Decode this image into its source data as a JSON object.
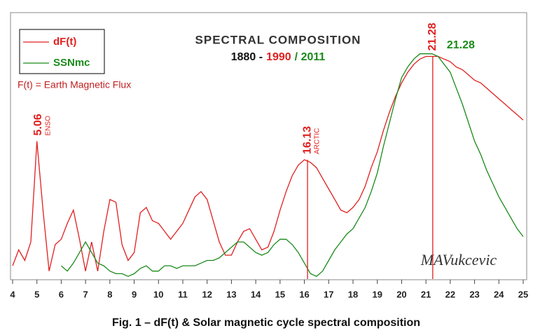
{
  "chart_data": {
    "type": "line",
    "title": "SPECTRAL COMPOSITION",
    "subtitle_parts": [
      {
        "text": "1880 -",
        "color": "#111111"
      },
      {
        "text": "1990",
        "color": "#e02020"
      },
      {
        "text": "/ 2011",
        "color": "#1a8a1a"
      }
    ],
    "note": "F(t) = Earth Magnetic Flux",
    "signature": "MAVukcevic",
    "caption": "Fig. 1 – dF(t)  & Solar magnetic cycle spectral composition",
    "x": [
      4,
      4.25,
      4.5,
      4.75,
      5,
      5.25,
      5.5,
      5.75,
      6,
      6.25,
      6.5,
      6.75,
      7,
      7.25,
      7.5,
      7.75,
      8,
      8.25,
      8.5,
      8.75,
      9,
      9.25,
      9.5,
      9.75,
      10,
      10.25,
      10.5,
      10.75,
      11,
      11.25,
      11.5,
      11.75,
      12,
      12.25,
      12.5,
      12.75,
      13,
      13.25,
      13.5,
      13.75,
      14,
      14.25,
      14.5,
      14.75,
      15,
      15.25,
      15.5,
      15.75,
      16,
      16.25,
      16.5,
      16.75,
      17,
      17.25,
      17.5,
      17.75,
      18,
      18.25,
      18.5,
      18.75,
      19,
      19.25,
      19.5,
      19.75,
      20,
      20.25,
      20.5,
      20.75,
      21,
      21.25,
      21.5,
      21.75,
      22,
      22.25,
      22.5,
      22.75,
      23,
      23.25,
      23.5,
      23.75,
      24,
      24.25,
      24.5,
      24.75,
      25
    ],
    "series": [
      {
        "name": "dF(t)",
        "color": "#e02020",
        "values": [
          5,
          11,
          7,
          14,
          52,
          26,
          3,
          13,
          15,
          21,
          26,
          15,
          3,
          14,
          3,
          18,
          30,
          29,
          13,
          7,
          10,
          25,
          27,
          22,
          21,
          18,
          15,
          18,
          21,
          26,
          31,
          33,
          30,
          22,
          14,
          9,
          9,
          14,
          18,
          19,
          15,
          11,
          12,
          18,
          26,
          33,
          39,
          43,
          45,
          44,
          42,
          38,
          34,
          30,
          26,
          25,
          27,
          30,
          35,
          42,
          48,
          56,
          63,
          69,
          74,
          78,
          81,
          83,
          84,
          84,
          84,
          83,
          82,
          80,
          79,
          77,
          75,
          74,
          72,
          70,
          68,
          66,
          64,
          62,
          60
        ]
      },
      {
        "name": "SSNmc",
        "color": "#1a8a1a",
        "values": [
          null,
          null,
          null,
          null,
          null,
          null,
          null,
          null,
          5,
          3,
          6,
          10,
          14,
          10,
          6,
          5,
          3,
          2,
          2,
          1,
          2,
          4,
          5,
          3,
          3,
          5,
          5,
          4,
          5,
          5,
          5,
          6,
          7,
          7,
          8,
          10,
          12,
          14,
          14,
          12,
          10,
          9,
          10,
          13,
          15,
          15,
          13,
          10,
          6,
          2,
          1,
          3,
          7,
          11,
          14,
          17,
          19,
          23,
          27,
          33,
          40,
          50,
          59,
          68,
          76,
          80,
          83,
          85,
          85,
          85,
          84,
          81,
          78,
          72,
          66,
          59,
          52,
          47,
          41,
          36,
          31,
          27,
          23,
          19,
          16
        ]
      }
    ],
    "annotations": [
      {
        "text": "5.06",
        "sub": "ENSO",
        "x": 5.06,
        "y": 52,
        "color": "#e02020"
      },
      {
        "text": "16.13",
        "sub": "ARCTIC",
        "x": 16.13,
        "y": 45,
        "color": "#e02020"
      },
      {
        "text": "21.28",
        "x": 21.28,
        "y": 84,
        "color": "#e02020"
      },
      {
        "text": "21.28",
        "x": 21.28,
        "y": 85,
        "color": "#1a8a1a"
      }
    ],
    "xlim": [
      4,
      25
    ],
    "ylim": [
      0,
      100
    ],
    "xticks": [
      4,
      5,
      6,
      7,
      8,
      9,
      10,
      11,
      12,
      13,
      14,
      15,
      16,
      17,
      18,
      19,
      20,
      21,
      22,
      23,
      24,
      25
    ]
  }
}
